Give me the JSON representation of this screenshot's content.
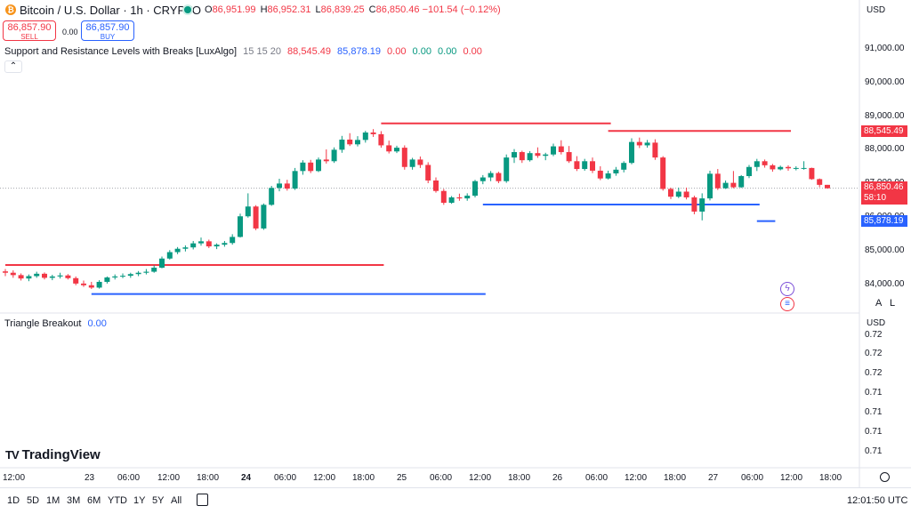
{
  "header": {
    "symbol_title": "Bitcoin / U.S. Dollar · 1h · CRYPTO",
    "ohlc": [
      {
        "k": "O",
        "v": "86,951.99"
      },
      {
        "k": "H",
        "v": "86,952.31"
      },
      {
        "k": "L",
        "v": "86,839.25"
      },
      {
        "k": "C",
        "v": "86,850.46"
      },
      {
        "k": "",
        "v": "−101.54 (−0.12%)"
      }
    ],
    "currency": "USD"
  },
  "trade": {
    "sell_price": "86,857.90",
    "sell_label": "SELL",
    "spread": "0.00",
    "buy_price": "86,857.90",
    "buy_label": "BUY"
  },
  "indicator1": {
    "name": "Support and Resistance Levels with Breaks [LuxAlgo]",
    "params": "15 15 20",
    "v1": "88,545.49",
    "v2": "85,878.19",
    "v3": "0.00",
    "v4": "0.00",
    "v5": "0.00",
    "v6": "0.00",
    "collapse_icon": "chevron-up-icon"
  },
  "indicator2": {
    "name": "Triangle Breakout",
    "value": "0.00",
    "currency": "USD"
  },
  "price_axis": [
    "91,000.00",
    "90,000.00",
    "89,000.00",
    "88,000.00",
    "87,000.00",
    "86,000.00",
    "85,000.00",
    "84,000.00"
  ],
  "price_tags": {
    "resistance": "88,545.49",
    "current": "86,850.46",
    "countdown": "58:10",
    "support": "85,878.19"
  },
  "lower_axis": [
    "0.72",
    "0.72",
    "0.72",
    "0.71",
    "0.71",
    "0.71",
    "0.71",
    "0.71"
  ],
  "lower_axis_top": "0.72",
  "scale_buttons": {
    "a": "A",
    "l": "L"
  },
  "time_axis": [
    "12:00",
    "23",
    "06:00",
    "12:00",
    "18:00",
    "24",
    "06:00",
    "12:00",
    "18:00",
    "25",
    "06:00",
    "12:00",
    "18:00",
    "26",
    "06:00",
    "12:00",
    "18:00",
    "27",
    "06:00",
    "12:00",
    "18:00"
  ],
  "logo": "TradingView",
  "bottom": {
    "ranges": [
      "1D",
      "5D",
      "1M",
      "3M",
      "6M",
      "YTD",
      "1Y",
      "5Y",
      "All"
    ],
    "clock": "12:01:50 UTC"
  },
  "colors": {
    "up": "#089981",
    "down": "#f23645",
    "resistance": "#f23645",
    "support": "#2962ff"
  },
  "chart_data": {
    "type": "candlestick",
    "y_range": [
      83500,
      91500
    ],
    "candles": [
      [
        84390,
        84460,
        84250,
        84350
      ],
      [
        84350,
        84420,
        84200,
        84280
      ],
      [
        84280,
        84330,
        84120,
        84180
      ],
      [
        84180,
        84300,
        84100,
        84250
      ],
      [
        84250,
        84380,
        84200,
        84320
      ],
      [
        84320,
        84360,
        84150,
        84200
      ],
      [
        84200,
        84290,
        84130,
        84240
      ],
      [
        84240,
        84350,
        84180,
        84270
      ],
      [
        84270,
        84310,
        84150,
        84190
      ],
      [
        84190,
        84240,
        83980,
        84030
      ],
      [
        84030,
        84120,
        83930,
        83980
      ],
      [
        83980,
        84080,
        83870,
        83910
      ],
      [
        83910,
        84130,
        83880,
        84080
      ],
      [
        84080,
        84240,
        84030,
        84210
      ],
      [
        84210,
        84300,
        84150,
        84240
      ],
      [
        84240,
        84330,
        84190,
        84260
      ],
      [
        84260,
        84350,
        84200,
        84310
      ],
      [
        84310,
        84400,
        84250,
        84350
      ],
      [
        84350,
        84460,
        84300,
        84380
      ],
      [
        84380,
        84570,
        84350,
        84500
      ],
      [
        84500,
        84830,
        84480,
        84770
      ],
      [
        84770,
        85020,
        84740,
        84960
      ],
      [
        84960,
        85110,
        84900,
        85060
      ],
      [
        85060,
        85160,
        84980,
        85100
      ],
      [
        85100,
        85290,
        85040,
        85220
      ],
      [
        85220,
        85390,
        85150,
        85280
      ],
      [
        85280,
        85330,
        85080,
        85130
      ],
      [
        85130,
        85220,
        85050,
        85180
      ],
      [
        85180,
        85290,
        85120,
        85230
      ],
      [
        85230,
        85490,
        85180,
        85410
      ],
      [
        85410,
        86100,
        85390,
        86020
      ],
      [
        86020,
        86700,
        85980,
        86310
      ],
      [
        86310,
        86350,
        85610,
        85660
      ],
      [
        85660,
        86400,
        85620,
        86360
      ],
      [
        86360,
        86920,
        86330,
        86860
      ],
      [
        86860,
        87130,
        86760,
        86990
      ],
      [
        86990,
        87100,
        86780,
        86840
      ],
      [
        86840,
        87450,
        86800,
        87360
      ],
      [
        87360,
        87680,
        87250,
        87610
      ],
      [
        87610,
        87690,
        87300,
        87360
      ],
      [
        87360,
        87760,
        87330,
        87700
      ],
      [
        87700,
        88000,
        87580,
        87650
      ],
      [
        87650,
        88060,
        87600,
        87990
      ],
      [
        87990,
        88400,
        87900,
        88290
      ],
      [
        88290,
        88480,
        88100,
        88150
      ],
      [
        88150,
        88390,
        88090,
        88280
      ],
      [
        88280,
        88550,
        88200,
        88500
      ],
      [
        88500,
        88600,
        88370,
        88450
      ],
      [
        88450,
        88540,
        88050,
        88120
      ],
      [
        88120,
        88260,
        87880,
        87940
      ],
      [
        87940,
        88110,
        87890,
        88050
      ],
      [
        88050,
        88120,
        87400,
        87480
      ],
      [
        87480,
        87750,
        87400,
        87700
      ],
      [
        87700,
        87790,
        87450,
        87540
      ],
      [
        87540,
        87620,
        87000,
        87080
      ],
      [
        87080,
        87170,
        86720,
        86770
      ],
      [
        86770,
        86830,
        86360,
        86420
      ],
      [
        86420,
        86620,
        86390,
        86580
      ],
      [
        86580,
        86690,
        86480,
        86550
      ],
      [
        86550,
        86700,
        86480,
        86630
      ],
      [
        86630,
        87100,
        86580,
        87060
      ],
      [
        87060,
        87240,
        86970,
        87170
      ],
      [
        87170,
        87360,
        87060,
        87300
      ],
      [
        87300,
        87340,
        87000,
        87060
      ],
      [
        87060,
        87850,
        87010,
        87760
      ],
      [
        87760,
        88010,
        87600,
        87920
      ],
      [
        87920,
        87960,
        87600,
        87680
      ],
      [
        87680,
        87950,
        87640,
        87890
      ],
      [
        87890,
        88060,
        87750,
        87810
      ],
      [
        87810,
        87900,
        87680,
        87850
      ],
      [
        87850,
        88170,
        87800,
        88090
      ],
      [
        88090,
        88270,
        87850,
        87920
      ],
      [
        87920,
        88100,
        87600,
        87650
      ],
      [
        87650,
        87800,
        87360,
        87420
      ],
      [
        87420,
        87720,
        87370,
        87650
      ],
      [
        87650,
        87760,
        87300,
        87370
      ],
      [
        87370,
        87500,
        87090,
        87140
      ],
      [
        87140,
        87370,
        87110,
        87290
      ],
      [
        87290,
        87480,
        87220,
        87400
      ],
      [
        87400,
        87650,
        87320,
        87600
      ],
      [
        87600,
        88330,
        87560,
        88220
      ],
      [
        88220,
        88350,
        88040,
        88120
      ],
      [
        88120,
        88280,
        88050,
        88200
      ],
      [
        88200,
        88300,
        87690,
        87760
      ],
      [
        87760,
        87800,
        86780,
        86830
      ],
      [
        86830,
        86870,
        86530,
        86600
      ],
      [
        86600,
        86870,
        86560,
        86750
      ],
      [
        86750,
        86870,
        86520,
        86580
      ],
      [
        86580,
        86630,
        86080,
        86160
      ],
      [
        86160,
        86700,
        85900,
        86550
      ],
      [
        86550,
        87370,
        86490,
        87280
      ],
      [
        87280,
        87420,
        86800,
        86850
      ],
      [
        86850,
        87080,
        86830,
        87010
      ],
      [
        87010,
        87360,
        86850,
        86880
      ],
      [
        86880,
        87240,
        86860,
        87210
      ],
      [
        87210,
        87540,
        87150,
        87480
      ],
      [
        87480,
        87720,
        87360,
        87650
      ],
      [
        87650,
        87700,
        87460,
        87530
      ],
      [
        87530,
        87570,
        87340,
        87410
      ],
      [
        87410,
        87520,
        87380,
        87480
      ],
      [
        87480,
        87530,
        87370,
        87440
      ],
      [
        87440,
        87500,
        87380,
        87450
      ],
      [
        87450,
        87650,
        87400,
        87450
      ],
      [
        87450,
        87460,
        87100,
        87120
      ],
      [
        87120,
        87140,
        86880,
        86951
      ],
      [
        86951,
        86952,
        86839,
        86850
      ]
    ],
    "resistance_lines": [
      {
        "from": 0,
        "to": 48,
        "value": 84580
      },
      {
        "from": 48,
        "to": 77,
        "value": 88770
      },
      {
        "from": 77,
        "to": 100,
        "value": 88545
      }
    ],
    "support_lines": [
      {
        "from": 11,
        "to": 61,
        "value": 83720
      },
      {
        "from": 61,
        "to": 96,
        "value": 86370
      },
      {
        "from": 96,
        "to": 98,
        "value": 85878
      }
    ]
  }
}
